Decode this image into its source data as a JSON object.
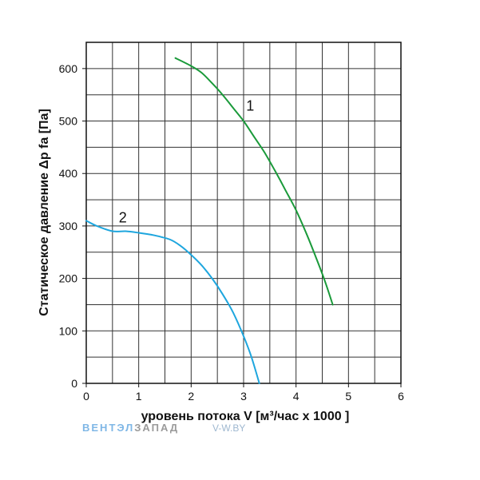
{
  "chart_data": {
    "type": "line",
    "xlabel": "уровень потока  V [м³/час x 1000 ]",
    "ylabel": "Статическое давление  Δp fa [Па]",
    "xlim": [
      0,
      6
    ],
    "ylim": [
      0,
      650
    ],
    "x_ticks": [
      "0",
      "1",
      "2",
      "3",
      "4",
      "5",
      "6"
    ],
    "y_ticks": [
      "0",
      "100",
      "200",
      "300",
      "400",
      "500",
      "600"
    ],
    "grid": true,
    "series": [
      {
        "name": "1",
        "color": "#1a9a3a",
        "points": [
          [
            1.7,
            620
          ],
          [
            2.0,
            605
          ],
          [
            2.2,
            592
          ],
          [
            2.4,
            572
          ],
          [
            2.6,
            550
          ],
          [
            2.8,
            525
          ],
          [
            3.0,
            500
          ],
          [
            3.2,
            470
          ],
          [
            3.4,
            440
          ],
          [
            3.6,
            405
          ],
          [
            3.8,
            368
          ],
          [
            4.0,
            330
          ],
          [
            4.2,
            285
          ],
          [
            4.4,
            235
          ],
          [
            4.55,
            195
          ],
          [
            4.7,
            150
          ]
        ]
      },
      {
        "name": "2",
        "color": "#1ea6de",
        "points": [
          [
            0.0,
            310
          ],
          [
            0.2,
            300
          ],
          [
            0.5,
            290
          ],
          [
            0.75,
            290
          ],
          [
            1.0,
            287
          ],
          [
            1.3,
            282
          ],
          [
            1.6,
            274
          ],
          [
            1.8,
            262
          ],
          [
            2.0,
            245
          ],
          [
            2.2,
            225
          ],
          [
            2.4,
            200
          ],
          [
            2.6,
            170
          ],
          [
            2.8,
            135
          ],
          [
            3.0,
            90
          ],
          [
            3.15,
            50
          ],
          [
            3.3,
            0
          ]
        ]
      }
    ]
  },
  "watermark": {
    "brand_part1": "ВЕНТЭЛ",
    "brand_part2": "ЗАПАД",
    "url": "V-W.BY"
  }
}
